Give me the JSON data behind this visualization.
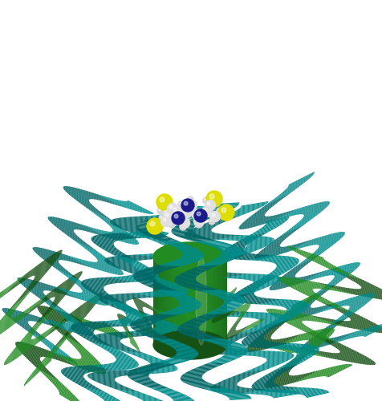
{
  "background_color": "#ffffff",
  "teal_color": "#008B8B",
  "teal_dark": "#006666",
  "teal_highlight": "#00AAAA",
  "green_color": "#228B22",
  "green_dark": "#155015",
  "green_highlight": "#2daa2d",
  "yellow_color": "#dddd00",
  "blue_dark": "#1a1a8c",
  "white_atom": "#e0e0e0",
  "gray_atom": "#b0b0b0",
  "fig_width": 4.77,
  "fig_height": 5.0,
  "dpi": 100
}
